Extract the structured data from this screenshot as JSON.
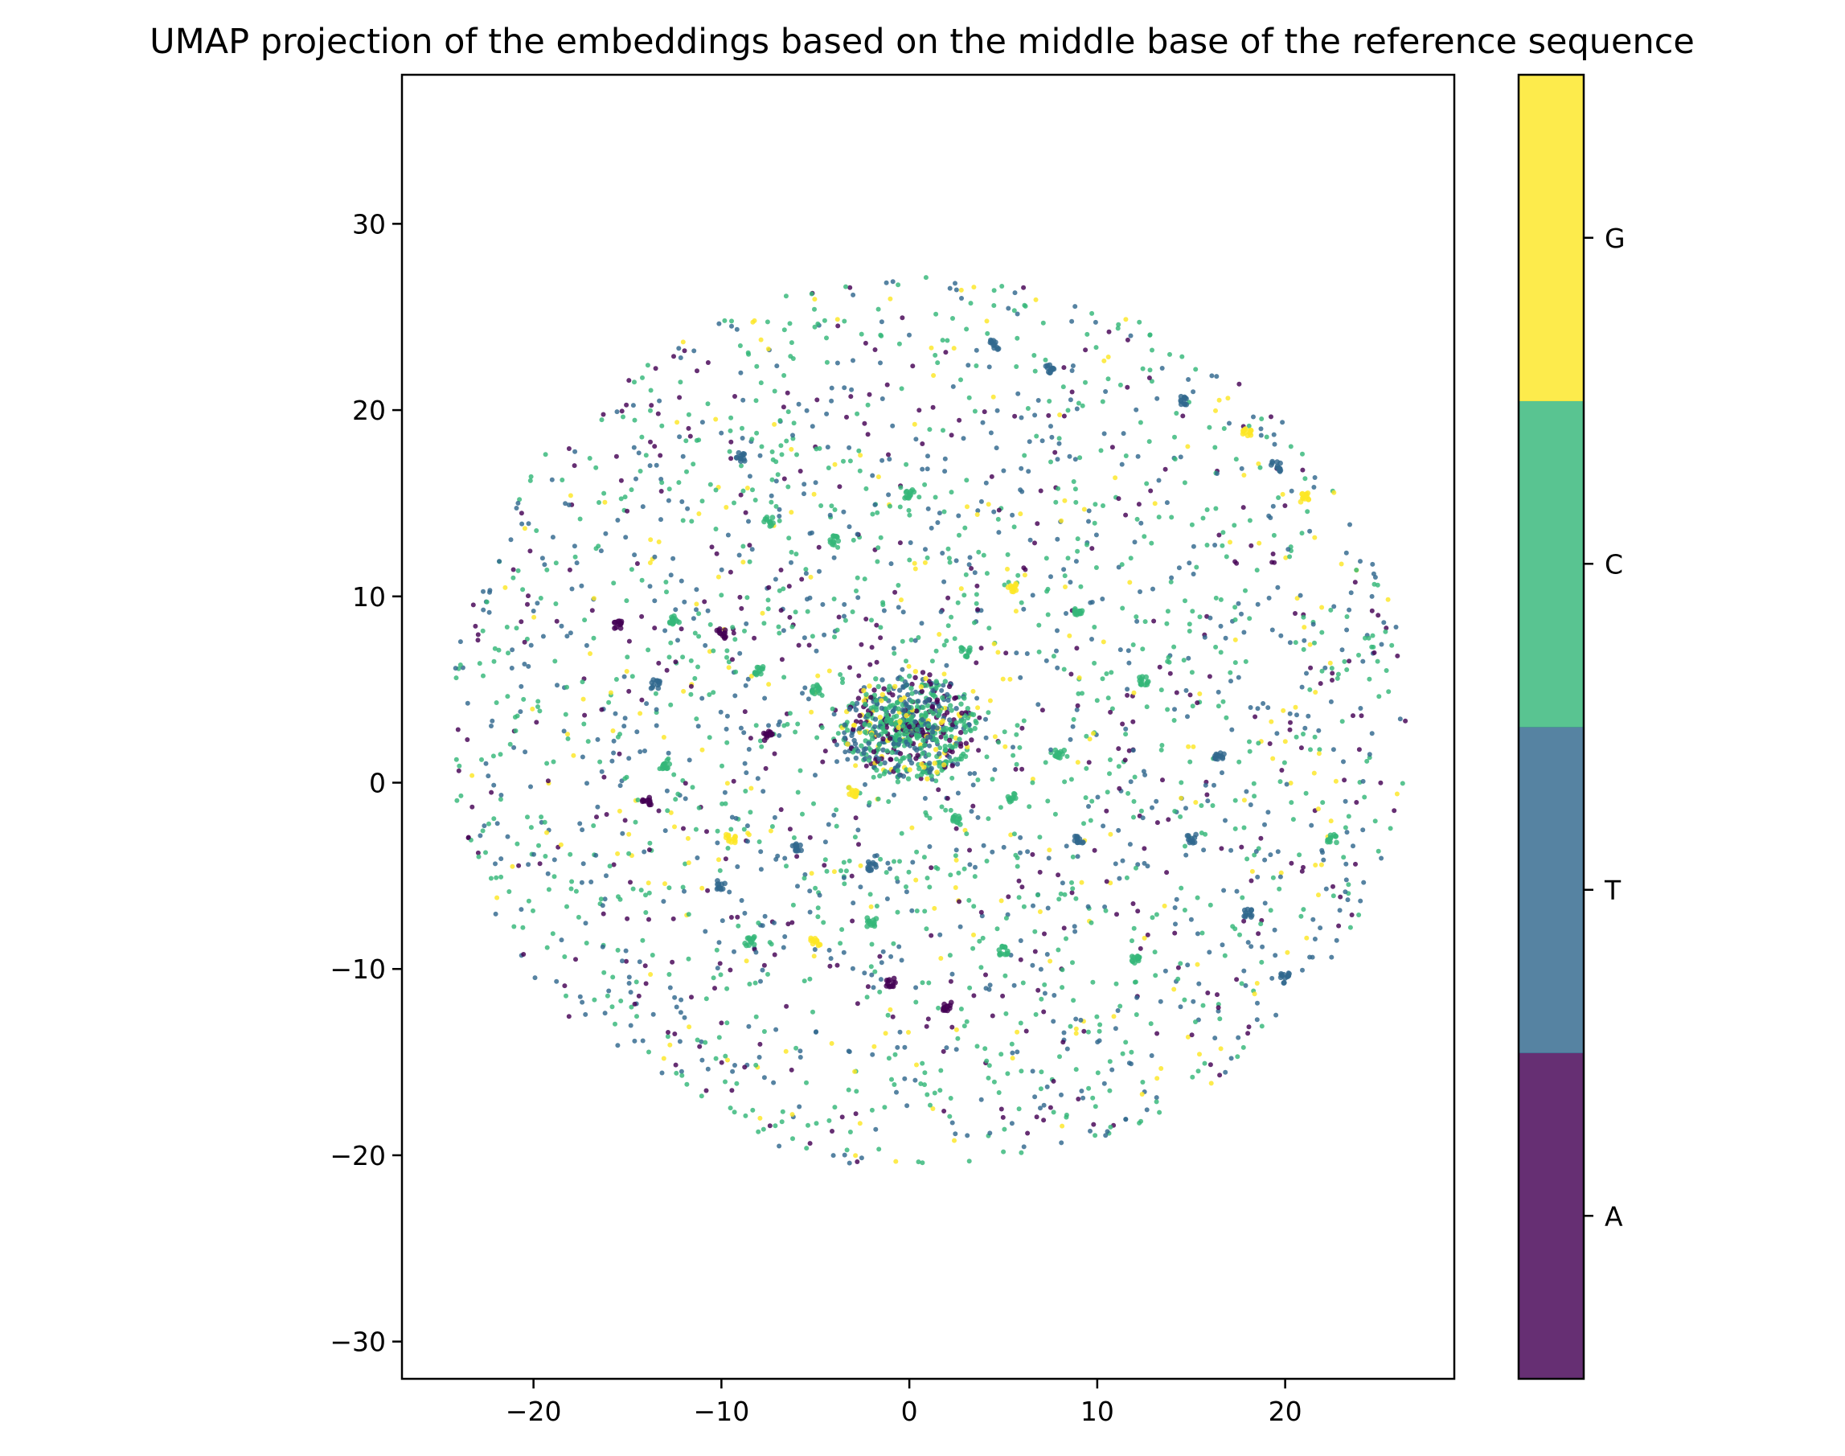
{
  "chart_data": {
    "type": "scatter",
    "title": "UMAP projection of the embeddings based on the middle base of the reference sequence",
    "xlabel": "",
    "ylabel": "",
    "xlim": [
      -27,
      29
    ],
    "ylim": [
      -32,
      38
    ],
    "xticks": [
      -20,
      -10,
      0,
      10,
      20
    ],
    "yticks": [
      -30,
      -20,
      -10,
      0,
      10,
      20,
      30
    ],
    "x_tick_labels": [
      "−20",
      "−10",
      "0",
      "10",
      "20"
    ],
    "y_tick_labels": [
      "−30",
      "−20",
      "−10",
      "0",
      "10",
      "20",
      "30"
    ],
    "grid": false,
    "colorbar": {
      "categories": [
        "A",
        "T",
        "C",
        "G"
      ],
      "colors": [
        "#440154",
        "#31688e",
        "#35b779",
        "#fde725"
      ],
      "alpha": 0.82
    },
    "point_cloud": {
      "shape": "disc",
      "center": [
        1,
        3.2
      ],
      "radius_x": 25.5,
      "radius_y": 24,
      "dense_core_center": [
        0,
        3
      ],
      "dense_core_radius": 3,
      "category_proportions": {
        "A": 0.16,
        "T": 0.3,
        "C": 0.44,
        "G": 0.1
      },
      "note_clusters": [
        [
          -9,
          17.5
        ],
        [
          -7.5,
          14
        ],
        [
          0,
          15.5
        ],
        [
          5.5,
          10.5
        ],
        [
          3,
          7
        ],
        [
          -8,
          6
        ],
        [
          -15.5,
          8.5
        ],
        [
          -12.5,
          8.7
        ],
        [
          -13.5,
          5.3
        ],
        [
          -7.5,
          2.5
        ],
        [
          -14,
          -1
        ],
        [
          -9.5,
          -3
        ],
        [
          -6,
          -3.5
        ],
        [
          -2,
          -4.5
        ],
        [
          2.5,
          -2
        ],
        [
          -2,
          -7.5
        ],
        [
          -1,
          -10.7
        ],
        [
          -8.5,
          -8.5
        ],
        [
          -5,
          -8.5
        ],
        [
          2,
          -12
        ],
        [
          5,
          -9
        ],
        [
          9,
          -3
        ],
        [
          12,
          -9.5
        ],
        [
          15,
          -3
        ],
        [
          18,
          -7
        ],
        [
          20,
          -10.5
        ],
        [
          22.5,
          -3
        ],
        [
          21,
          15.3
        ],
        [
          19.5,
          17
        ],
        [
          18,
          18.8
        ],
        [
          14.5,
          20.5
        ],
        [
          7.5,
          22.2
        ],
        [
          4.5,
          23.5
        ],
        [
          9,
          9.2
        ],
        [
          12.5,
          5.5
        ],
        [
          -10,
          8
        ],
        [
          -13,
          1
        ],
        [
          -4,
          13
        ],
        [
          5.5,
          -0.8
        ],
        [
          8,
          1.5
        ],
        [
          -5,
          5
        ],
        [
          -10,
          -5.5
        ],
        [
          16.5,
          1.5
        ],
        [
          -3,
          -0.5
        ]
      ]
    },
    "series": [
      {
        "name": "A",
        "color": "#440154"
      },
      {
        "name": "T",
        "color": "#31688e"
      },
      {
        "name": "C",
        "color": "#35b779"
      },
      {
        "name": "G",
        "color": "#fde725"
      }
    ]
  }
}
